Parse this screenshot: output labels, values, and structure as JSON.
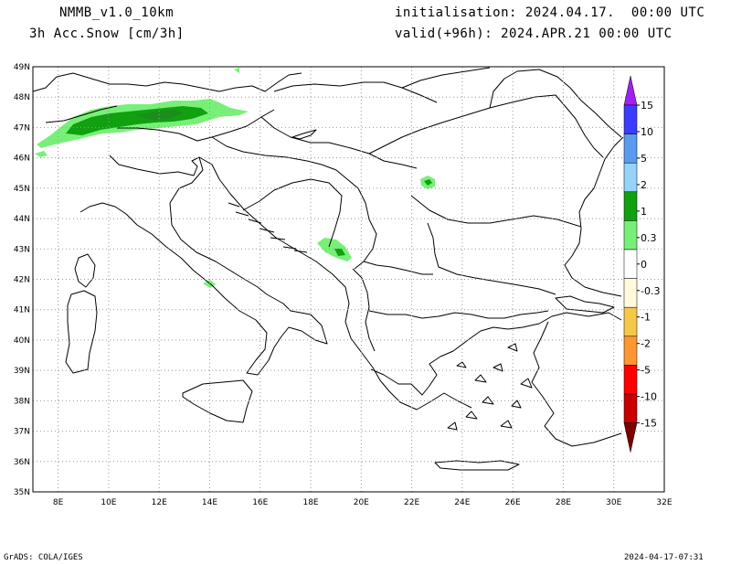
{
  "header": {
    "model": "NMMB_v1.0_10km",
    "variable": "3h Acc.Snow [cm/3h]",
    "init": "initialisation: 2024.04.17.  00:00 UTC",
    "valid": "valid(+96h): 2024.APR.21 00:00 UTC"
  },
  "footer": {
    "left": "GrADS: COLA/IGES",
    "right": "2024-04-17-07:31"
  },
  "map": {
    "lat_labels": [
      "49N",
      "48N",
      "47N",
      "46N",
      "45N",
      "44N",
      "43N",
      "42N",
      "41N",
      "40N",
      "39N",
      "38N",
      "37N",
      "36N",
      "35N"
    ],
    "lon_labels": [
      "8E",
      "10E",
      "12E",
      "14E",
      "16E",
      "18E",
      "20E",
      "22E",
      "24E",
      "26E",
      "28E",
      "30E",
      "32E"
    ],
    "lat_range": [
      35,
      49
    ],
    "lon_range": [
      7,
      32
    ]
  },
  "legend": {
    "labels": [
      "15",
      "10",
      "5",
      "2",
      "1",
      "0.3",
      "0",
      "-0.3",
      "-1",
      "-2",
      "-5",
      "-10",
      "-15"
    ],
    "colors": [
      "#a020f0",
      "#3c3cff",
      "#5a9bf0",
      "#96d2fa",
      "#10a010",
      "#78f078",
      "#ffffff",
      "#fffadc",
      "#f5c84a",
      "#ff9632",
      "#ff0000",
      "#c80000",
      "#7d0000"
    ]
  },
  "colors": {
    "snow_light": "#78f078",
    "snow_mid": "#10a010",
    "snow_dark": "#1c8c1c",
    "grid": "#999999"
  }
}
